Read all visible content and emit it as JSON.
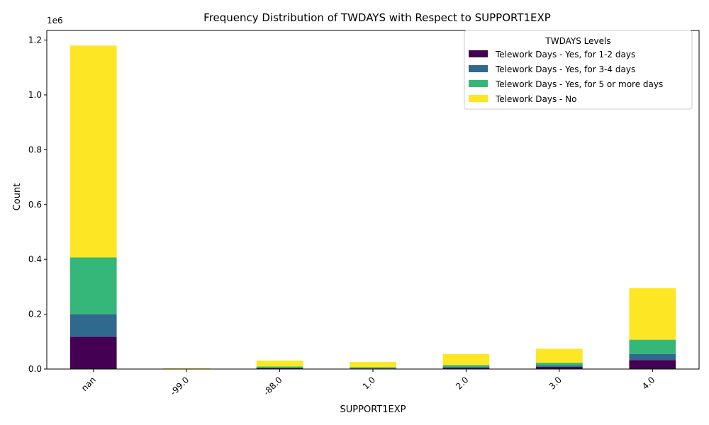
{
  "chart_data": {
    "type": "bar",
    "stacked": true,
    "title": "Frequency Distribution of TWDAYS with Respect to SUPPORT1EXP",
    "xlabel": "SUPPORT1EXP",
    "ylabel": "Count",
    "y_offset_label": "1e6",
    "ylim": [
      0,
      1235000
    ],
    "yticks": [
      0,
      200000,
      400000,
      600000,
      800000,
      1000000,
      1200000
    ],
    "ytick_labels": [
      "0.0",
      "0.2",
      "0.4",
      "0.6",
      "0.8",
      "1.0",
      "1.2"
    ],
    "categories": [
      "nan",
      "-99.0",
      "-88.0",
      "1.0",
      "2.0",
      "3.0",
      "4.0"
    ],
    "legend_title": "TWDAYS Levels",
    "legend_position": "top-right",
    "series": [
      {
        "name": "Telework Days - Yes, for 1-2 days",
        "color": "#440154",
        "values": [
          118000,
          500,
          3000,
          2000,
          4000,
          8000,
          33000
        ]
      },
      {
        "name": "Telework Days - Yes, for 3-4 days",
        "color": "#31688e",
        "values": [
          82000,
          300,
          2000,
          1500,
          3500,
          5000,
          22000
        ]
      },
      {
        "name": "Telework Days - Yes, for 5 or more days",
        "color": "#35b779",
        "values": [
          207000,
          400,
          4000,
          3000,
          7000,
          10000,
          52000
        ]
      },
      {
        "name": "Telework Days - No",
        "color": "#fde725",
        "values": [
          773000,
          1800,
          22000,
          19500,
          40500,
          51000,
          188000
        ]
      }
    ]
  }
}
